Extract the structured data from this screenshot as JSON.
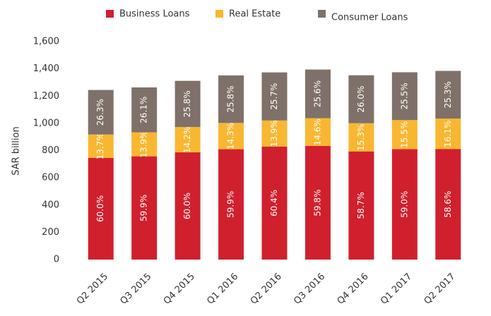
{
  "chart_data": {
    "type": "stacked_bar",
    "y_label": "SAR billion",
    "categories": [
      "Q2 2015",
      "Q3 2015",
      "Q4 2015",
      "Q1 2016",
      "Q2 2016",
      "Q3 2016",
      "Q4 2016",
      "Q1 2017",
      "Q2 2017"
    ],
    "series": [
      {
        "name": "Business Loans",
        "color": "#d0202e",
        "values": [
          747,
          758,
          787,
          810,
          830,
          834,
          794,
          811,
          812
        ],
        "value_labels": [
          "60.0%",
          "59.9%",
          "60.0%",
          "59.9%",
          "60.4%",
          "59.8%",
          "58.7%",
          "59.0%",
          "58.6%"
        ]
      },
      {
        "name": "Real Estate",
        "color": "#f9b731",
        "values": [
          171,
          176,
          186,
          193,
          191,
          204,
          207,
          213,
          223
        ],
        "value_labels": [
          "13.7%",
          "13.9%",
          "14.2%",
          "14.3%",
          "13.9%",
          "14.6%",
          "15.3%",
          "15.5%",
          "16.1%"
        ]
      },
      {
        "name": "Consumer Loans",
        "color": "#7f7169",
        "values": [
          327,
          330,
          339,
          349,
          353,
          357,
          352,
          351,
          350
        ],
        "value_labels": [
          "26.3%",
          "26.1%",
          "25.8%",
          "25.8%",
          "25.7%",
          "25.6%",
          "26.0%",
          "25.5%",
          "25.3%"
        ]
      }
    ],
    "ylim": [
      0,
      1600
    ],
    "yticks": [
      0,
      200,
      400,
      600,
      800,
      {
        "value": 1000,
        "label": "1,000"
      },
      {
        "value": 1200,
        "label": "1,200"
      },
      {
        "value": 1400,
        "label": "1,400"
      },
      {
        "value": 1600,
        "label": "1,600"
      }
    ],
    "grid": false,
    "legend": "top"
  }
}
